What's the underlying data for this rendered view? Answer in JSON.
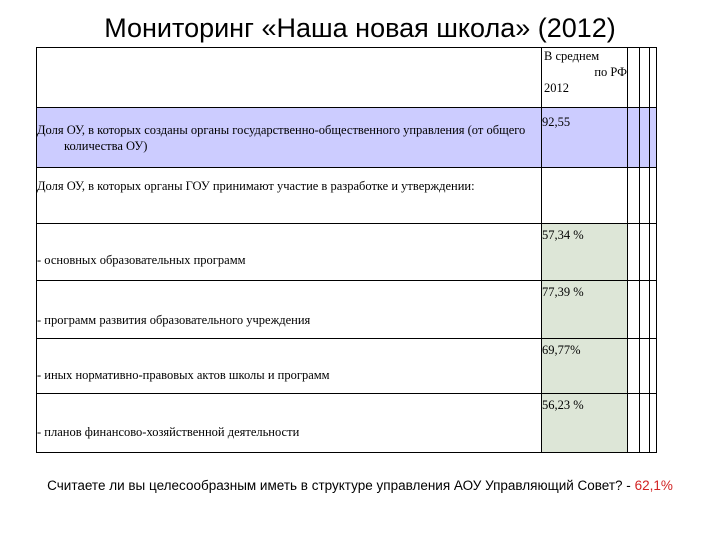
{
  "title": "Мониторинг «Наша новая школа» (2012)",
  "table": {
    "header": [
      "В среднем",
      "по РФ",
      "2012"
    ],
    "rows": [
      {
        "label": "Доля ОУ, в которых созданы органы государственно-общественного управления (от общего количества ОУ)",
        "value": "92,55"
      },
      {
        "label": "Доля ОУ, в которых органы ГОУ принимают участие в разработке и утверждении:",
        "value": ""
      },
      {
        "label": "- основных образовательных программ",
        "value": "57,34 %"
      },
      {
        "label": "- программ развития образовательного учреждения",
        "value": "77,39 %"
      },
      {
        "label": "- иных нормативно-правовых актов школы и программ",
        "value": "69,77%"
      },
      {
        "label": "- планов финансово-хозяйственной деятельности",
        "value": "56,23 %"
      }
    ]
  },
  "footer": {
    "question": "Считаете ли вы целесообразным иметь в структуре управления  АОУ Управляющий Совет? - ",
    "answer": "62,1%"
  },
  "colors": {
    "highlight_row": "#ccccff",
    "value_cells": "#dde6d7",
    "answer": "#d22222"
  }
}
